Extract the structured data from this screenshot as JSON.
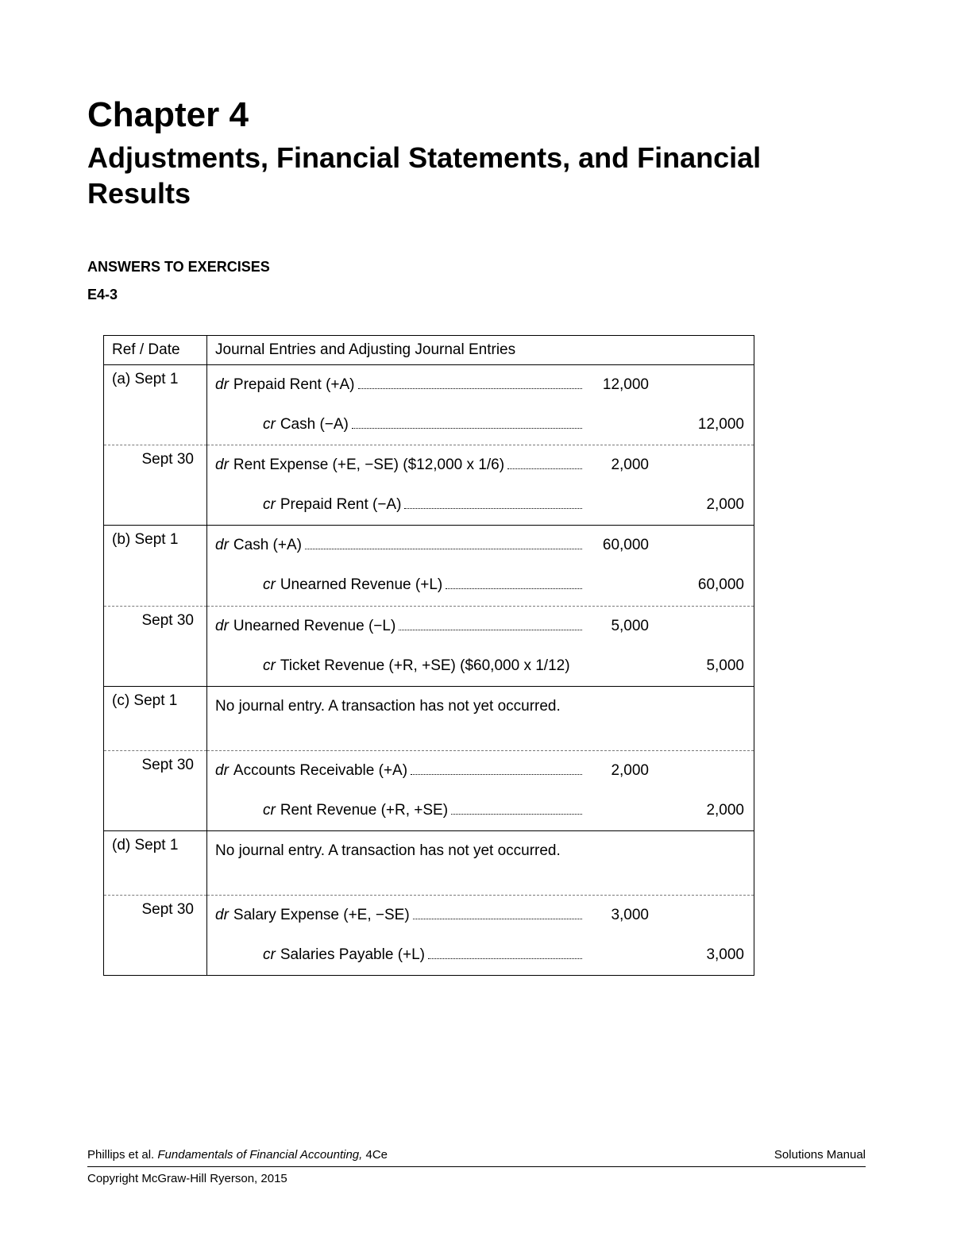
{
  "header": {
    "chapter_num": "Chapter 4",
    "chapter_title": "Adjustments, Financial Statements, and Financial Results",
    "section_head": "ANSWERS TO EXERCISES",
    "exercise_id": "E4-3"
  },
  "table": {
    "col_date": "Ref / Date",
    "col_entries": "Journal Entries and Adjusting Journal Entries",
    "rows": [
      {
        "date": "(a) Sept 1",
        "align": "left",
        "sep": "none",
        "lines": [
          {
            "type": "dr",
            "ind": 0,
            "prefix": "dr",
            "acct": "Prepaid Rent (+A)",
            "dr": "12,000",
            "cr": ""
          }
        ]
      },
      {
        "date": "",
        "align": "left",
        "sep": "dashed",
        "lines": [
          {
            "type": "cr",
            "ind": 60,
            "prefix": "cr",
            "acct": "Cash (−A)",
            "dr": "",
            "cr": "12,000"
          }
        ]
      },
      {
        "date": "Sept 30",
        "align": "right",
        "sep": "none",
        "lines": [
          {
            "type": "dr",
            "ind": 0,
            "prefix": "dr",
            "acct": "Rent Expense (+E, −SE) ($12,000 x 1/6)",
            "dr": "2,000",
            "cr": ""
          }
        ]
      },
      {
        "date": "",
        "align": "left",
        "sep": "solid",
        "lines": [
          {
            "type": "cr",
            "ind": 60,
            "prefix": "cr",
            "acct": "Prepaid Rent (−A)",
            "dr": "",
            "cr": "2,000"
          }
        ]
      },
      {
        "date": "(b) Sept 1",
        "align": "left",
        "sep": "none",
        "lines": [
          {
            "type": "dr",
            "ind": 0,
            "prefix": "dr",
            "acct": "Cash (+A)",
            "dr": "60,000",
            "cr": ""
          }
        ]
      },
      {
        "date": "",
        "align": "left",
        "sep": "dashed",
        "lines": [
          {
            "type": "cr",
            "ind": 60,
            "prefix": "cr",
            "acct": "Unearned Revenue (+L)",
            "dr": "",
            "cr": "60,000"
          }
        ]
      },
      {
        "date": "Sept 30",
        "align": "right",
        "sep": "none",
        "lines": [
          {
            "type": "dr",
            "ind": 0,
            "prefix": "dr",
            "acct": "Unearned Revenue (−L)",
            "dr": "5,000",
            "cr": ""
          }
        ]
      },
      {
        "date": "",
        "align": "left",
        "sep": "solid",
        "lines": [
          {
            "type": "cr",
            "ind": 60,
            "prefix": "cr",
            "acct": "Ticket Revenue (+R, +SE) ($60,000 x 1/12)",
            "nodots": true,
            "dr": "",
            "cr": "5,000"
          }
        ]
      },
      {
        "date": "(c) Sept 1",
        "align": "left",
        "sep": "dashed",
        "lines": [
          {
            "type": "note",
            "text": "No journal entry.  A transaction has not yet occurred."
          }
        ]
      },
      {
        "date": "Sept 30",
        "align": "right",
        "sep": "none",
        "lines": [
          {
            "type": "dr",
            "ind": 0,
            "prefix": "dr",
            "acct": "Accounts Receivable (+A)",
            "dr": "2,000",
            "cr": ""
          }
        ]
      },
      {
        "date": "",
        "align": "left",
        "sep": "solid",
        "lines": [
          {
            "type": "cr",
            "ind": 60,
            "prefix": "cr",
            "acct": "Rent Revenue (+R, +SE)",
            "dr": "",
            "cr": "2,000"
          }
        ]
      },
      {
        "date": "(d) Sept 1",
        "align": "left",
        "sep": "dashed",
        "lines": [
          {
            "type": "note",
            "text": "No journal entry.  A transaction has not yet occurred."
          }
        ]
      },
      {
        "date": "Sept 30",
        "align": "right",
        "sep": "none",
        "lines": [
          {
            "type": "dr",
            "ind": 0,
            "prefix": "dr",
            "acct": "Salary Expense (+E, −SE)",
            "dr": "3,000",
            "cr": ""
          }
        ]
      },
      {
        "date": "",
        "align": "left",
        "sep": "last",
        "lines": [
          {
            "type": "cr",
            "ind": 60,
            "prefix": "cr",
            "acct": "Salaries Payable (+L)",
            "dr": "",
            "cr": "3,000"
          }
        ]
      }
    ]
  },
  "footer": {
    "authors": "Phillips et al. ",
    "book_title": "Fundamentals of Financial Accounting,",
    "edition": " 4Ce",
    "right": "Solutions Manual",
    "copyright": "Copyright McGraw-Hill Ryerson, 2015"
  }
}
